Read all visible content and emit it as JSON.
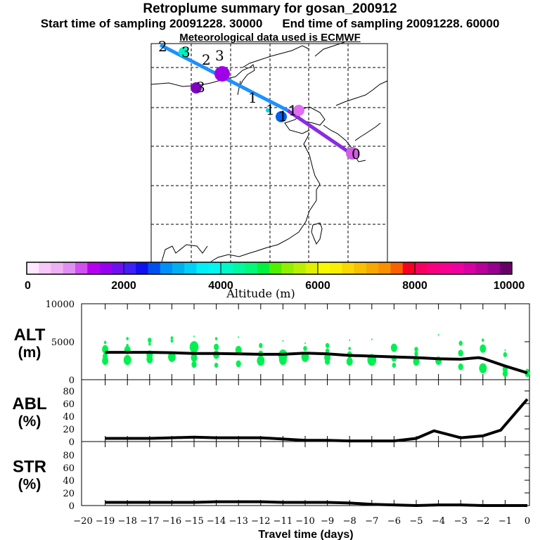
{
  "header": {
    "title": "Retroplume summary for gosan_200912",
    "start": "Start time of sampling 20091228. 30000",
    "end": "End time of sampling 20091228. 60000",
    "met": "Meteorological data used is ECMWF"
  },
  "map": {
    "trajectory_labels": [
      "0",
      "1",
      "1",
      "1",
      "1",
      "2",
      "2",
      "3",
      "3",
      "3"
    ],
    "segment_colors": {
      "recent": "#8a2be2",
      "older": "#1e90ff"
    }
  },
  "colorbar": {
    "label": "Altitude (m)",
    "ticks": [
      "0",
      "2000",
      "4000",
      "6000",
      "8000",
      "10000"
    ],
    "colors": [
      "#fde8fd",
      "#f8c8f8",
      "#f0b0f4",
      "#e090f0",
      "#d050f0",
      "#b800f0",
      "#9800f0",
      "#7010f0",
      "#4020f8",
      "#1010f0",
      "#0050f0",
      "#0090f8",
      "#00b0f0",
      "#00d0f8",
      "#00f0f8",
      "#00f8f0",
      "#00f8c8",
      "#00f8a0",
      "#00f878",
      "#00f040",
      "#50f000",
      "#90f000",
      "#b8f000",
      "#e0f000",
      "#f8f800",
      "#f8f000",
      "#f8d800",
      "#f8c000",
      "#f8a800",
      "#f89000",
      "#f86000",
      "#f80020",
      "#f80060",
      "#f80080",
      "#f80090",
      "#f000a0",
      "#d800a0",
      "#b80098",
      "#980090",
      "#680068"
    ]
  },
  "chart_data": [
    {
      "type": "line",
      "name": "ALT",
      "ylabel": "ALT",
      "yunit": "(m)",
      "ylim": [
        0,
        10000
      ],
      "yticks": [
        "0",
        "5000",
        "10000"
      ],
      "x": [
        -19,
        -18,
        -17,
        -16,
        -15,
        -14,
        -13,
        -12,
        -11,
        -10,
        -9,
        -8,
        -7,
        -6,
        -5,
        -4,
        -3,
        -2.2,
        -2,
        -1,
        0
      ],
      "values": [
        3600,
        3600,
        3600,
        3550,
        3450,
        3450,
        3400,
        3350,
        3350,
        3500,
        3400,
        3200,
        3100,
        3000,
        2900,
        2750,
        2700,
        2900,
        2800,
        1800,
        900
      ],
      "scatter_color": "#00f050",
      "scatter": [
        [
          -19,
          4900,
          2
        ],
        [
          -19,
          4000,
          5
        ],
        [
          -19,
          3100,
          4
        ],
        [
          -19,
          2500,
          5
        ],
        [
          -18,
          5400,
          2
        ],
        [
          -18,
          4500,
          2
        ],
        [
          -18,
          3900,
          5
        ],
        [
          -18,
          2600,
          6
        ],
        [
          -17,
          5200,
          3
        ],
        [
          -17,
          4700,
          2
        ],
        [
          -17,
          3300,
          5
        ],
        [
          -17,
          2700,
          5
        ],
        [
          -16,
          5500,
          2
        ],
        [
          -16,
          5100,
          2
        ],
        [
          -16,
          3000,
          6
        ],
        [
          -15,
          5700,
          1
        ],
        [
          -15,
          4300,
          7
        ],
        [
          -15,
          2900,
          5
        ],
        [
          -15,
          2000,
          4
        ],
        [
          -14,
          5400,
          2
        ],
        [
          -14,
          4300,
          4
        ],
        [
          -14,
          3300,
          5
        ],
        [
          -14,
          1900,
          3
        ],
        [
          -13,
          5600,
          1
        ],
        [
          -13,
          3900,
          5
        ],
        [
          -13,
          2100,
          4
        ],
        [
          -12,
          4500,
          3
        ],
        [
          -12,
          3400,
          4
        ],
        [
          -12,
          2500,
          6
        ],
        [
          -11,
          5100,
          1
        ],
        [
          -11,
          3200,
          7
        ],
        [
          -11,
          2600,
          6
        ],
        [
          -10,
          4800,
          1
        ],
        [
          -10,
          4100,
          3
        ],
        [
          -10,
          3000,
          6
        ],
        [
          -9,
          4500,
          3
        ],
        [
          -9,
          3800,
          3
        ],
        [
          -9,
          2900,
          5
        ],
        [
          -9,
          2400,
          4
        ],
        [
          -8,
          5200,
          1
        ],
        [
          -8,
          4100,
          2
        ],
        [
          -8,
          3300,
          4
        ],
        [
          -8,
          2400,
          5
        ],
        [
          -7,
          5300,
          1
        ],
        [
          -7,
          2600,
          7
        ],
        [
          -6,
          4200,
          5
        ],
        [
          -6,
          2800,
          4
        ],
        [
          -6,
          1900,
          3
        ],
        [
          -5,
          4000,
          3
        ],
        [
          -5,
          3400,
          3
        ],
        [
          -5,
          2400,
          5
        ],
        [
          -4,
          5900,
          1
        ],
        [
          -4,
          2500,
          5
        ],
        [
          -3,
          4800,
          3
        ],
        [
          -3,
          3500,
          4
        ],
        [
          -3,
          1700,
          4
        ],
        [
          -2,
          5200,
          2
        ],
        [
          -2,
          4100,
          5
        ],
        [
          -2,
          1500,
          6
        ],
        [
          -1,
          3900,
          1
        ],
        [
          -1,
          3300,
          3
        ],
        [
          -1,
          1400,
          4
        ],
        [
          -1,
          800,
          4
        ],
        [
          0,
          1100,
          3
        ],
        [
          0,
          800,
          4
        ]
      ]
    },
    {
      "type": "line",
      "name": "ABL",
      "ylabel": "ABL",
      "yunit": "(%)",
      "ylim": [
        0,
        90
      ],
      "yticks": [
        "0",
        "20",
        "40",
        "60",
        "80"
      ],
      "x": [
        -19,
        -17,
        -16,
        -15,
        -14,
        -12,
        -11,
        -10,
        -9,
        -8,
        -7,
        -6,
        -5,
        -4.2,
        -3,
        -2,
        -1.2,
        0
      ],
      "values": [
        5,
        5,
        6,
        7,
        6,
        6,
        4,
        2,
        2,
        1,
        1,
        1,
        5,
        17,
        6,
        9,
        18,
        67
      ]
    },
    {
      "type": "line",
      "name": "STR",
      "ylabel": "STR",
      "yunit": "(%)",
      "ylim": [
        0,
        90
      ],
      "yticks": [
        "0",
        "20",
        "40",
        "60",
        "80"
      ],
      "x": [
        -19,
        -17,
        -15,
        -14,
        -12,
        -11,
        -9,
        -8,
        -7,
        -6,
        -5,
        -4,
        -3,
        -2,
        -1,
        0
      ],
      "values": [
        5,
        5,
        5,
        6,
        6,
        5,
        5,
        4,
        2,
        1,
        0,
        1,
        1,
        0,
        0,
        0
      ],
      "xlabel": "Travel time (days)",
      "xlim": [
        -20,
        0
      ],
      "xticks": [
        "-20",
        "-19",
        "-18",
        "-17",
        "-16",
        "-15",
        "-14",
        "-13",
        "-12",
        "-11",
        "-10",
        "-9",
        "-8",
        "-7",
        "-6",
        "-5",
        "-4",
        "-3",
        "-2",
        "-1",
        "0"
      ]
    }
  ]
}
